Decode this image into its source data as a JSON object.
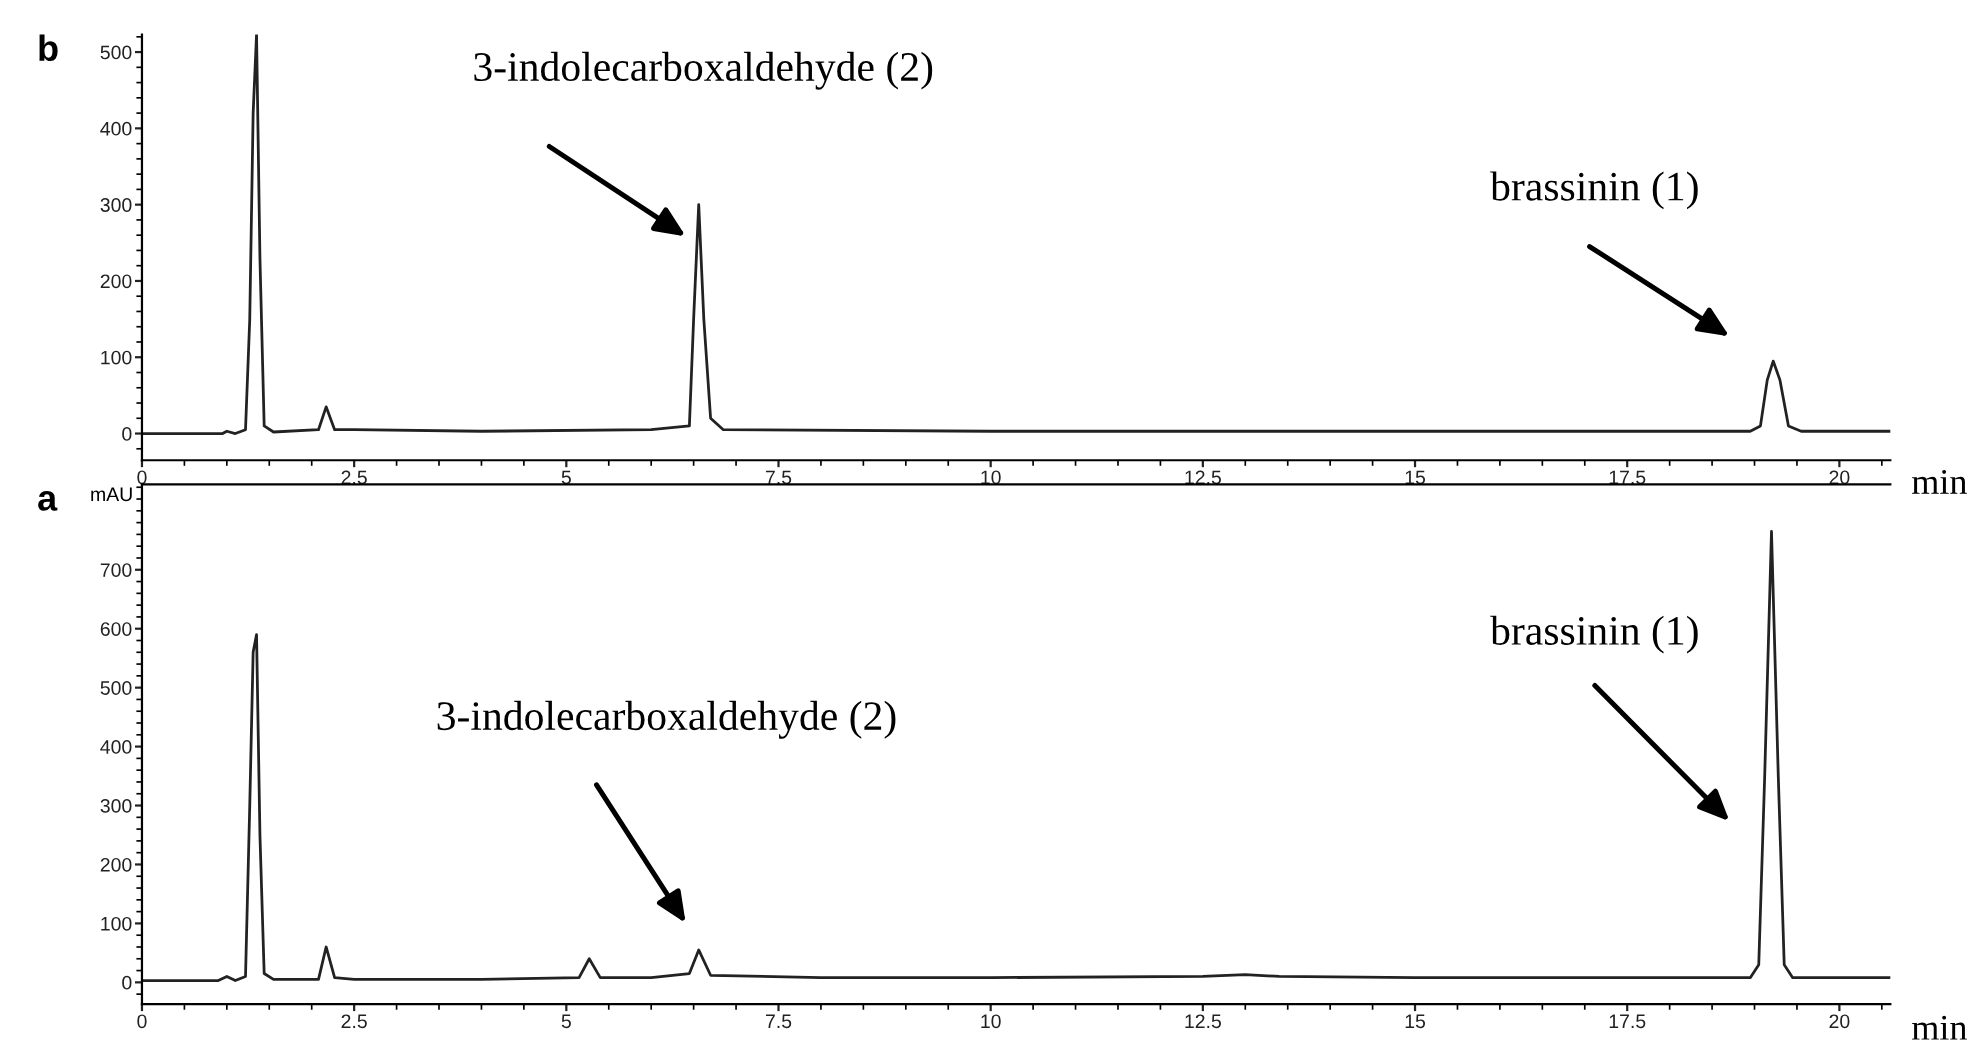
{
  "chart_data": [
    {
      "type": "line",
      "title": "b",
      "xlabel": "min",
      "xlim": [
        0,
        20.6
      ],
      "xticks": [
        0,
        2.5,
        5,
        7.5,
        10,
        12.5,
        15,
        17.5,
        20
      ],
      "ylim": [
        -35,
        523
      ],
      "yticks": [
        0,
        100,
        200,
        300,
        400,
        500
      ],
      "series": [
        {
          "color": "#222222",
          "x": [
            0,
            0.95,
            1.0,
            1.1,
            1.22,
            1.27,
            1.31,
            1.35,
            1.39,
            1.44,
            1.55,
            2.08,
            2.17,
            2.27,
            2.5,
            4,
            6.0,
            6.45,
            6.5,
            6.56,
            6.62,
            6.7,
            6.85,
            10,
            15,
            18.95,
            19.07,
            19.15,
            19.22,
            19.3,
            19.4,
            19.55,
            20.6
          ],
          "values": [
            0,
            0,
            3,
            0,
            5,
            150,
            420,
            523,
            230,
            10,
            2,
            5,
            35,
            5,
            5,
            3,
            5,
            10,
            150,
            300,
            150,
            20,
            5,
            3,
            3,
            3,
            10,
            70,
            95,
            70,
            10,
            3,
            3
          ]
        }
      ],
      "annotations": [
        "3-indolecarboxaldehyde (2)",
        "brassinin (1)"
      ]
    },
    {
      "type": "line",
      "title": "a",
      "xlabel": "min",
      "ylabel": "mAU",
      "xlim": [
        0,
        20.6
      ],
      "xticks": [
        0,
        2.5,
        5,
        7.5,
        10,
        12.5,
        15,
        17.5,
        20
      ],
      "ylim": [
        -37,
        845
      ],
      "yticks": [
        0,
        100,
        200,
        300,
        400,
        500,
        600,
        700
      ],
      "series": [
        {
          "color": "#222222",
          "x": [
            0,
            0.9,
            1.0,
            1.1,
            1.22,
            1.27,
            1.31,
            1.35,
            1.39,
            1.44,
            1.55,
            2.08,
            2.17,
            2.27,
            2.5,
            4,
            5.15,
            5.27,
            5.4,
            6.0,
            6.45,
            6.56,
            6.7,
            8,
            10,
            12.5,
            13.0,
            13.4,
            15,
            18.95,
            19.05,
            19.12,
            19.2,
            19.28,
            19.35,
            19.45,
            19.55,
            20.6
          ],
          "values": [
            3,
            3,
            10,
            3,
            10,
            300,
            560,
            590,
            250,
            15,
            5,
            5,
            60,
            8,
            5,
            5,
            8,
            40,
            8,
            8,
            15,
            55,
            12,
            8,
            8,
            10,
            13,
            10,
            8,
            8,
            30,
            350,
            765,
            350,
            30,
            8,
            8,
            8
          ]
        }
      ],
      "annotations": [
        "3-indolecarboxaldehyde (2)",
        "brassinin (1)"
      ]
    }
  ]
}
